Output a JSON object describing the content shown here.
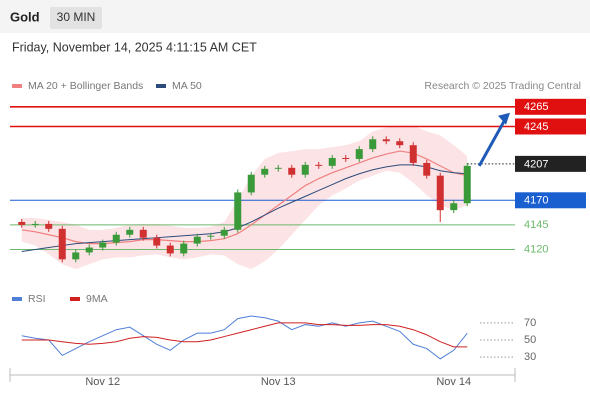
{
  "header": {
    "symbol": "Gold",
    "interval": "30 MIN",
    "datetime": "Friday, November 14, 2025 4:11:15 AM CET",
    "source": "Research © 2025 Trading Central"
  },
  "chart_data": {
    "type": "candlestick",
    "categories": [
      null,
      null,
      null,
      null,
      null,
      null,
      "Nov 12",
      null,
      null,
      null,
      null,
      null,
      null,
      null,
      null,
      null,
      null,
      null,
      null,
      "Nov 13",
      null,
      null,
      null,
      null,
      null,
      null,
      null,
      null,
      null,
      null,
      null,
      null,
      "Nov 14",
      null
    ],
    "open": [
      4148,
      4145,
      4146,
      4141,
      4110,
      4117,
      4122,
      4127,
      4135,
      4140,
      4132,
      4124,
      4116,
      4126,
      4133,
      4134,
      4140,
      4178,
      4196,
      4202,
      4203,
      4196,
      4206,
      4205,
      4213,
      4212,
      4222,
      4232,
      4230,
      4226,
      4208,
      4195,
      4160,
      4167
    ],
    "high": [
      4151,
      4149,
      4149,
      4144,
      4120,
      4125,
      4130,
      4138,
      4143,
      4143,
      4135,
      4127,
      4129,
      4136,
      4137,
      4143,
      4181,
      4199,
      4205,
      4206,
      4206,
      4209,
      4209,
      4216,
      4216,
      4225,
      4235,
      4235,
      4233,
      4229,
      4211,
      4198,
      4170,
      4208
    ],
    "low": [
      4142,
      4142,
      4138,
      4107,
      4107,
      4114,
      4119,
      4124,
      4132,
      4129,
      4121,
      4113,
      4113,
      4123,
      4130,
      4131,
      4137,
      4175,
      4193,
      4199,
      4193,
      4193,
      4202,
      4202,
      4209,
      4209,
      4219,
      4227,
      4223,
      4205,
      4192,
      4148,
      4157,
      4164
    ],
    "close": [
      4145,
      4146,
      4141,
      4110,
      4117,
      4122,
      4127,
      4135,
      4140,
      4132,
      4124,
      4116,
      4126,
      4133,
      4134,
      4140,
      4178,
      4196,
      4202,
      4203,
      4196,
      4206,
      4205,
      4213,
      4212,
      4222,
      4232,
      4230,
      4226,
      4208,
      4195,
      4160,
      4167,
      4205
    ],
    "up_color": "#3a9a3a",
    "down_color": "#d03030",
    "ylim": [
      4089,
      4277
    ],
    "series": [
      {
        "name": "MA 20 + Bollinger Bands",
        "color": "#f08080",
        "values": [
          4140,
          4138,
          4135,
          4132,
          4128,
          4126,
          4126,
          4127,
          4128,
          4130,
          4130,
          4129,
          4128,
          4128,
          4129,
          4131,
          4136,
          4145,
          4155,
          4165,
          4175,
          4185,
          4192,
          4198,
          4203,
          4208,
          4213,
          4217,
          4220,
          4218,
          4212,
          4205,
          4198,
          4195
        ],
        "upper": [
          4152,
          4152,
          4150,
          4148,
          4145,
          4140,
          4140,
          4142,
          4145,
          4146,
          4146,
          4144,
          4142,
          4142,
          4143,
          4148,
          4170,
          4195,
          4212,
          4218,
          4220,
          4222,
          4222,
          4224,
          4226,
          4230,
          4240,
          4244,
          4246,
          4246,
          4240,
          4236,
          4226,
          4215
        ],
        "lower": [
          4128,
          4124,
          4115,
          4105,
          4100,
          4105,
          4110,
          4112,
          4112,
          4114,
          4115,
          4112,
          4110,
          4112,
          4115,
          4114,
          4105,
          4100,
          4108,
          4120,
          4135,
          4150,
          4165,
          4175,
          4182,
          4190,
          4195,
          4200,
          4198,
          4188,
          4175,
          4165,
          4160,
          4165
        ],
        "band_color": "#fbd9dc"
      },
      {
        "name": "MA 50",
        "color": "#2c4a7a",
        "values": [
          4118,
          4120,
          4122,
          4124,
          4126,
          4127,
          4128,
          4129,
          4130,
          4131,
          4132,
          4133,
          4134,
          4135,
          4136,
          4138,
          4142,
          4148,
          4155,
          4162,
          4168,
          4174,
          4180,
          4186,
          4192,
          4197,
          4201,
          4204,
          4206,
          4206,
          4204,
          4200,
          4198,
          4197
        ]
      }
    ],
    "levels": [
      {
        "value": 4265,
        "color": "#e01010",
        "style": "box"
      },
      {
        "value": 4245,
        "color": "#e01010",
        "style": "box"
      },
      {
        "value": 4207,
        "color": "#222222",
        "style": "current"
      },
      {
        "value": 4170,
        "color": "#1a5fd0",
        "style": "box"
      },
      {
        "value": 4145,
        "color": "#6db86d",
        "style": "text"
      },
      {
        "value": 4120,
        "color": "#6db86d",
        "style": "text"
      }
    ],
    "arrow_color": "#1e5bb8",
    "rsi": {
      "ylim": [
        15,
        85
      ],
      "yticks": [
        70,
        50,
        30
      ],
      "series": [
        {
          "name": "RSI",
          "color": "#4f7fd6",
          "values": [
            55,
            52,
            50,
            32,
            40,
            48,
            55,
            62,
            65,
            55,
            45,
            38,
            50,
            58,
            58,
            62,
            75,
            78,
            76,
            72,
            62,
            68,
            66,
            70,
            66,
            70,
            72,
            66,
            60,
            45,
            40,
            28,
            38,
            58
          ]
        },
        {
          "name": "9MA",
          "color": "#d02020",
          "values": [
            50,
            50,
            50,
            48,
            46,
            45,
            46,
            48,
            52,
            54,
            53,
            50,
            48,
            48,
            50,
            54,
            58,
            62,
            66,
            70,
            70,
            70,
            68,
            68,
            67,
            67,
            68,
            68,
            66,
            62,
            56,
            48,
            42,
            42
          ]
        }
      ]
    }
  }
}
